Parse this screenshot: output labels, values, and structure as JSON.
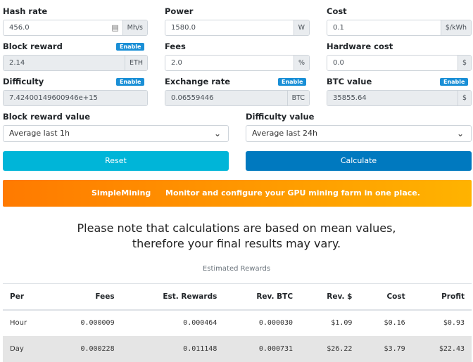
{
  "fields": [
    {
      "label": "Hash rate",
      "value": "456.0",
      "unit": "Mh/s",
      "icon": "keyboard-icon"
    },
    {
      "label": "Power",
      "value": "1580.0",
      "unit": "W"
    },
    {
      "label": "Cost",
      "value": "0.1",
      "unit": "$/kWh"
    },
    {
      "label": "Block reward",
      "value": "2.14",
      "unit": "ETH",
      "badge": "Enable"
    },
    {
      "label": "Fees",
      "value": "2.0",
      "unit": "%"
    },
    {
      "label": "Hardware cost",
      "value": "0.0",
      "unit": "$"
    },
    {
      "label": "Difficulty",
      "value": "7.42400149600946e+15",
      "badge": "Enable"
    },
    {
      "label": "Exchange rate",
      "value": "0.06559446",
      "unit": "BTC",
      "badge": "Enable"
    },
    {
      "label": "BTC value",
      "value": "35855.64",
      "unit": "$",
      "badge": "Enable"
    }
  ],
  "selects": [
    {
      "label": "Block reward value",
      "value": "Average last 1h"
    },
    {
      "label": "Difficulty value",
      "value": "Average last 24h"
    }
  ],
  "buttons": {
    "reset": "Reset",
    "calculate": "Calculate",
    "reset_color": "#00b5d8",
    "calculate_color": "#0079bf"
  },
  "banner": {
    "brand": "SimpleMining",
    "text": "Monitor and configure your GPU mining farm in one place."
  },
  "note": {
    "line1": "Please note that calculations are based on mean values,",
    "line2": "therefore your final results may vary."
  },
  "table": {
    "caption": "Estimated Rewards",
    "headers": [
      "Per",
      "Fees",
      "Est. Rewards",
      "Rev. BTC",
      "Rev. $",
      "Cost",
      "Profit"
    ],
    "rows": [
      [
        "Hour",
        "0.000009",
        "0.000464",
        "0.000030",
        "$1.09",
        "$0.16",
        "$0.93"
      ],
      [
        "Day",
        "0.000228",
        "0.011148",
        "0.000731",
        "$26.22",
        "$3.79",
        "$22.43"
      ]
    ]
  }
}
